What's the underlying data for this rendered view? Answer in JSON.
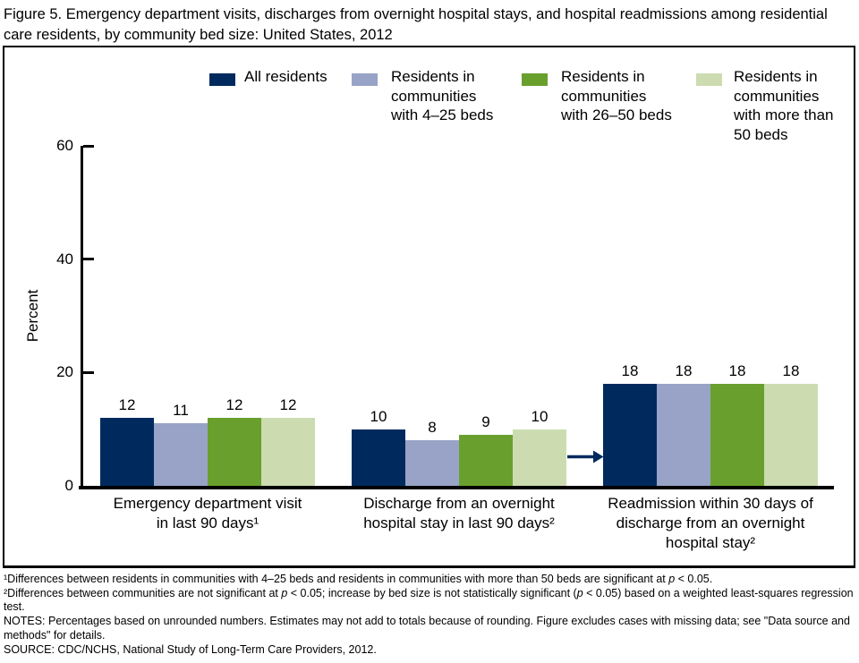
{
  "figure": {
    "title": "Figure 5. Emergency department visits, discharges from overnight hospital stays, and hospital readmissions among residential care residents, by community bed size: United States, 2012"
  },
  "legend": {
    "items": [
      {
        "lines": [
          "All residents"
        ]
      },
      {
        "lines": [
          "Residents in",
          "communities",
          "with 4–25 beds"
        ]
      },
      {
        "lines": [
          "Residents in",
          "communities",
          "with 26–50 beds"
        ]
      },
      {
        "lines": [
          "Residents in",
          "communities",
          "with more than",
          "50 beds"
        ]
      }
    ]
  },
  "chart_data": {
    "type": "bar",
    "title": "",
    "xlabel": "",
    "ylabel": "Percent",
    "ylim": [
      0,
      60
    ],
    "yticks": [
      0,
      20,
      40,
      60
    ],
    "grid": false,
    "legend_position": "top",
    "categories": [
      "Emergency department visit in last 90 days¹",
      "Discharge from an overnight hospital stay in last 90 days²",
      "Readmission within 30 days of discharge from an overnight hospital stay²"
    ],
    "category_lines": [
      [
        "Emergency department visit",
        "in last 90 days¹"
      ],
      [
        "Discharge from an overnight",
        "hospital stay in last 90 days²"
      ],
      [
        "Readmission within 30 days of",
        "discharge from an overnight",
        "hospital stay²"
      ]
    ],
    "series": [
      {
        "name": "All residents",
        "color": "#002a5e",
        "values": [
          12,
          10,
          18
        ]
      },
      {
        "name": "Residents in communities with 4–25 beds",
        "color": "#98a3c7",
        "values": [
          11,
          8,
          18
        ]
      },
      {
        "name": "Residents in communities with 26–50 beds",
        "color": "#69a02d",
        "values": [
          12,
          9,
          18
        ]
      },
      {
        "name": "Residents in communities with more than 50 beds",
        "color": "#ccdcb0",
        "values": [
          12,
          10,
          18
        ]
      }
    ],
    "annotation": {
      "type": "arrow",
      "points_to_category": 2,
      "color": "#002a5e"
    }
  },
  "footnotes": [
    "¹Differences between residents in communities with 4–25 beds and residents in communities with more than 50 beds are significant at p < 0.05.",
    "²Differences between communities are not significant at p < 0.05; increase by bed size is not statistically significant (p < 0.05) based on a weighted least-squares regression test.",
    "NOTES: Percentages based on unrounded numbers. Estimates may not add to totals because of rounding. Figure excludes cases with missing data; see \"Data source and methods\" for details.",
    "SOURCE: CDC/NCHS, National Study of Long-Term Care Providers, 2012."
  ]
}
